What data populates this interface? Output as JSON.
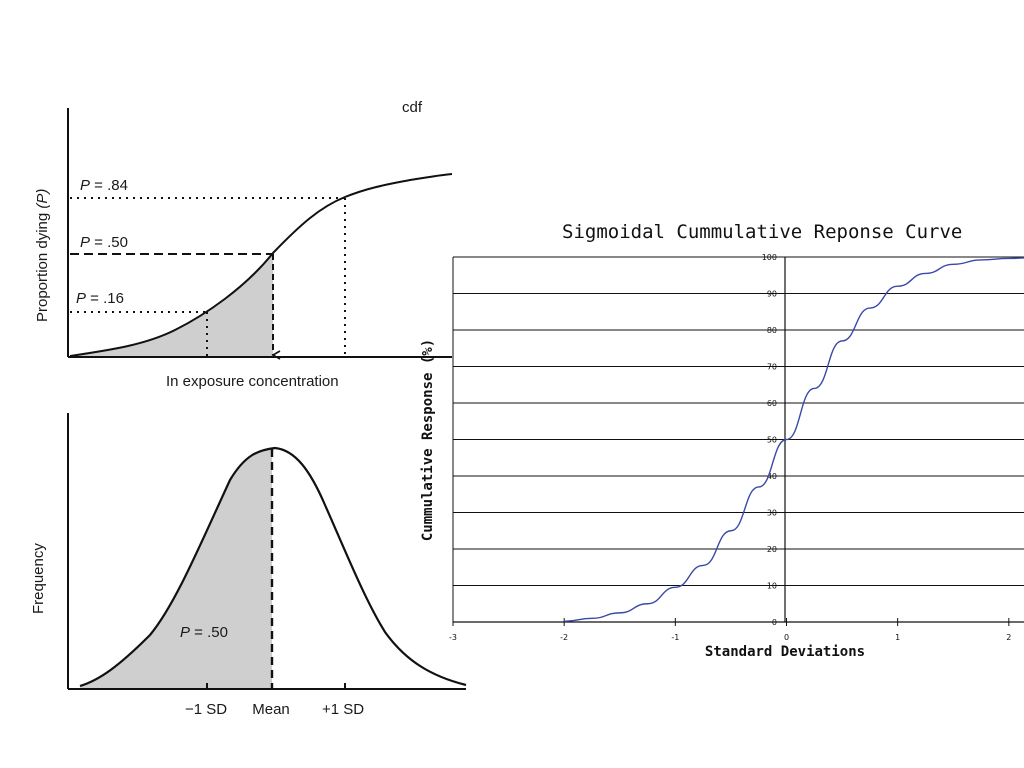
{
  "chart_data": [
    {
      "type": "line",
      "panel": "cdf",
      "title": "cdf",
      "xlabel": "In exposure concentration",
      "ylabel_prefix": "Proportion dying",
      "ylabel_var": "(P)",
      "shaded_region": "left of mean",
      "reference_levels": [
        {
          "p_text": "P",
          "value_text": " = .84",
          "value": 0.84,
          "line_style": "dotted"
        },
        {
          "p_text": "P",
          "value_text": " = .50",
          "value": 0.5,
          "line_style": "dashed"
        },
        {
          "p_text": "P",
          "value_text": " = .16",
          "value": 0.16,
          "line_style": "dotted"
        }
      ],
      "grid": false
    },
    {
      "type": "area",
      "panel": "pdf",
      "ylabel": "Frequency",
      "categories": [
        "−1 SD",
        "Mean",
        "+1 SD"
      ],
      "shaded_annotation": {
        "p_text": "P",
        "value_text": " = .50",
        "value": 0.5
      },
      "grid": false
    },
    {
      "type": "line",
      "title": "Sigmoidal Cummulative Reponse Curve",
      "xlabel": "Standard Deviations",
      "ylabel": "Cummulative Response (%)",
      "xlim": [
        -3,
        2
      ],
      "ylim": [
        0,
        100
      ],
      "xticks": [
        -3,
        -2,
        -1,
        0,
        1,
        2
      ],
      "yticks": [
        0,
        10,
        20,
        30,
        40,
        50,
        60,
        70,
        80,
        90,
        100
      ],
      "grid": true,
      "line_color": "#3a48a8",
      "series": [
        {
          "x": [
            -2.0,
            -1.75,
            -1.5,
            -1.25,
            -1.0,
            -0.75,
            -0.5,
            -0.25,
            0.0,
            0.25,
            0.5,
            0.75,
            1.0,
            1.25,
            1.5,
            1.75,
            2.0,
            2.2
          ],
          "values": [
            0.2,
            1.0,
            2.5,
            5.0,
            9.5,
            15.5,
            25.0,
            37.0,
            50.0,
            64.0,
            77.0,
            86.0,
            92.0,
            95.5,
            98.0,
            99.2,
            99.6,
            99.8
          ]
        }
      ]
    }
  ]
}
